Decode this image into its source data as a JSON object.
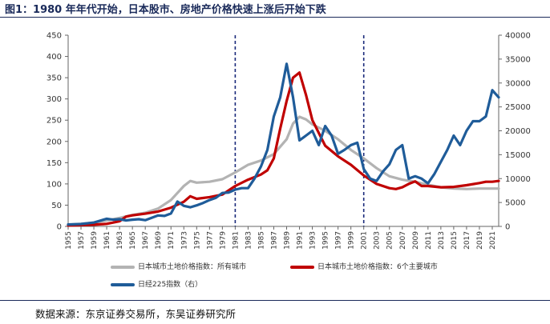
{
  "figure_title": "图1：1980 年年代开始，日本股市、房地产价格快速上涨后开始下跌",
  "source_note": "数据来源：东京证券交易所，东吴证券研究所",
  "chart_data": {
    "type": "line",
    "title": "图1：1980 年年代开始，日本股市、房地产价格快速上涨后开始下跌",
    "xlabel": "",
    "ylabel_left": "",
    "ylabel_right": "",
    "xlim": [
      1955,
      2022
    ],
    "ylim_left": [
      0,
      450
    ],
    "ylim_right": [
      0,
      40000
    ],
    "yticks_left": [
      0,
      50,
      100,
      150,
      200,
      250,
      300,
      350,
      400,
      450
    ],
    "yticks_right": [
      0,
      5000,
      10000,
      15000,
      20000,
      25000,
      30000,
      35000,
      40000
    ],
    "xticks": [
      "1955",
      "1957",
      "1959",
      "1961",
      "1963",
      "1965",
      "1967",
      "1969",
      "1971",
      "1973",
      "1975",
      "1977",
      "1979",
      "1981",
      "1983",
      "1985",
      "1987",
      "1989",
      "1991",
      "1993",
      "1995",
      "1997",
      "1999",
      "2001",
      "2003",
      "2005",
      "2007",
      "2009",
      "2011",
      "2013",
      "2015",
      "2017",
      "2019",
      "2021"
    ],
    "vertical_markers": [
      1981,
      2001
    ],
    "colors": {
      "all_cities": "#b3b3b3",
      "six_cities": "#c00000",
      "nikkei": "#1f5c99",
      "marker": "#1a2a7a"
    },
    "legend": [
      {
        "name": "日本城市土地价格指数：所有城市",
        "color": "#b3b3b3"
      },
      {
        "name": "日本城市土地价格指数：6个主要城市",
        "color": "#c00000"
      },
      {
        "name": "日经225指数（右）",
        "color": "#1f5c99"
      }
    ],
    "series": [
      {
        "name": "日本城市土地价格指数：所有城市",
        "axis": "left",
        "x": [
          1955,
          1957,
          1959,
          1961,
          1963,
          1965,
          1967,
          1969,
          1971,
          1973,
          1974,
          1975,
          1977,
          1979,
          1981,
          1983,
          1985,
          1987,
          1989,
          1990,
          1991,
          1992,
          1993,
          1995,
          1997,
          1999,
          2001,
          2003,
          2005,
          2007,
          2009,
          2011,
          2013,
          2015,
          2017,
          2019,
          2021,
          2022
        ],
        "values": [
          4,
          6,
          9,
          14,
          20,
          27,
          32,
          42,
          62,
          95,
          107,
          103,
          105,
          111,
          127,
          145,
          155,
          170,
          205,
          242,
          258,
          252,
          240,
          225,
          205,
          180,
          160,
          137,
          118,
          110,
          105,
          98,
          92,
          89,
          88,
          89,
          89,
          89
        ]
      },
      {
        "name": "日本城市土地价格指数：6个主要城市",
        "axis": "left",
        "x": [
          1955,
          1957,
          1959,
          1961,
          1963,
          1964,
          1965,
          1967,
          1969,
          1971,
          1973,
          1974,
          1975,
          1977,
          1979,
          1981,
          1983,
          1985,
          1986,
          1987,
          1988,
          1989,
          1990,
          1991,
          1992,
          1993,
          1995,
          1997,
          1999,
          2001,
          2003,
          2005,
          2006,
          2007,
          2008,
          2009,
          2010,
          2011,
          2013,
          2015,
          2017,
          2019,
          2020,
          2021,
          2022
        ],
        "values": [
          2,
          3,
          4,
          6,
          12,
          23,
          26,
          30,
          35,
          44,
          58,
          71,
          65,
          69,
          75,
          95,
          110,
          122,
          132,
          160,
          230,
          295,
          350,
          362,
          310,
          250,
          190,
          165,
          145,
          120,
          100,
          90,
          88,
          92,
          100,
          106,
          95,
          95,
          92,
          93,
          97,
          102,
          105,
          105,
          107
        ]
      },
      {
        "name": "日经225指数（右）",
        "axis": "right",
        "x": [
          1955,
          1957,
          1959,
          1961,
          1962,
          1963,
          1964,
          1965,
          1966,
          1967,
          1968,
          1969,
          1970,
          1971,
          1972,
          1973,
          1974,
          1975,
          1976,
          1977,
          1978,
          1979,
          1980,
          1981,
          1982,
          1983,
          1984,
          1985,
          1986,
          1987,
          1988,
          1989,
          1990,
          1991,
          1992,
          1993,
          1994,
          1995,
          1996,
          1997,
          1998,
          1999,
          2000,
          2001,
          2002,
          2003,
          2004,
          2005,
          2006,
          2007,
          2008,
          2009,
          2010,
          2011,
          2012,
          2013,
          2014,
          2015,
          2016,
          2017,
          2018,
          2019,
          2020,
          2021,
          2022
        ],
        "values": [
          400,
          500,
          800,
          1600,
          1400,
          1500,
          1250,
          1400,
          1500,
          1300,
          1800,
          2300,
          2200,
          2700,
          5200,
          4300,
          4000,
          4400,
          4900,
          5500,
          6000,
          7000,
          7100,
          7700,
          8000,
          8000,
          10000,
          12500,
          16000,
          23000,
          27000,
          34000,
          27000,
          18000,
          19000,
          20000,
          17000,
          21000,
          19000,
          15200,
          16000,
          17000,
          17500,
          12000,
          10000,
          9500,
          11500,
          13000,
          16000,
          17000,
          10000,
          10500,
          10000,
          9000,
          11000,
          13500,
          16000,
          19000,
          17000,
          20000,
          22000,
          22000,
          23000,
          28500,
          27000
        ]
      }
    ]
  }
}
